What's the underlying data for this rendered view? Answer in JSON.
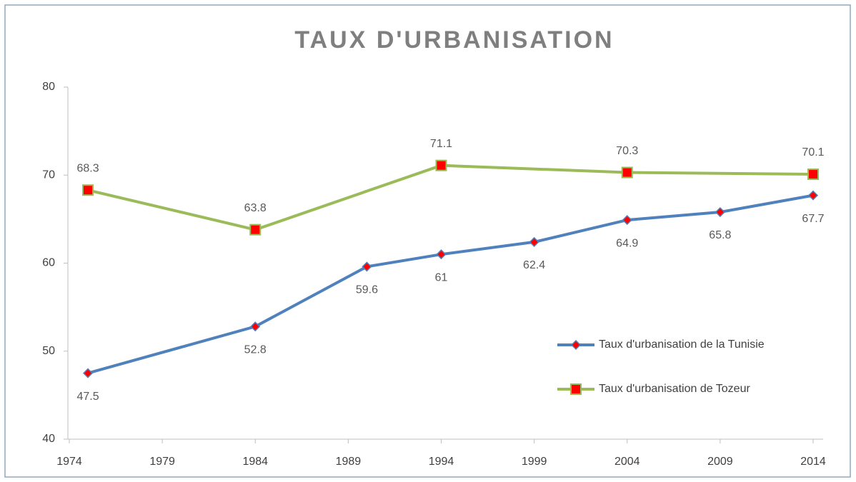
{
  "chart_data": {
    "type": "line",
    "title": "TAUX D'URBANISATION",
    "xlim": [
      1974,
      2014
    ],
    "xticks": [
      1974,
      1979,
      1984,
      1989,
      1994,
      1999,
      2004,
      2009,
      2014
    ],
    "ylim": [
      40,
      80
    ],
    "yticks": [
      40,
      50,
      60,
      70,
      80
    ],
    "grid": false,
    "legend_position": "right",
    "series": [
      {
        "name": "Taux d'urbanisation de la Tunisie",
        "color": "#4f81bd",
        "marker": "diamond",
        "marker_color": "#ff0000",
        "x": [
          1975,
          1984,
          1990,
          1994,
          1999,
          2004,
          2009,
          2014
        ],
        "values": [
          47.5,
          52.8,
          59.6,
          61,
          62.4,
          64.9,
          65.8,
          67.7
        ],
        "label_side": "below"
      },
      {
        "name": "Taux d'urbanisation de Tozeur",
        "color": "#9bbb59",
        "marker": "square",
        "marker_color": "#ff0000",
        "x": [
          1975,
          1984,
          1994,
          2004,
          2014
        ],
        "values": [
          68.3,
          63.8,
          71.1,
          70.3,
          70.1
        ],
        "label_side": "above"
      }
    ]
  }
}
